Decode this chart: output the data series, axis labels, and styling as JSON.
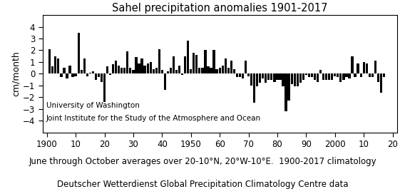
{
  "title": "Sahel precipitation anomalies 1901-2017",
  "ylabel": "cm/month",
  "ylim": [
    -5,
    5
  ],
  "yticks": [
    -4,
    -3,
    -2,
    -1,
    0,
    1,
    2,
    3,
    4
  ],
  "xticks": [
    1900,
    1910,
    1920,
    1930,
    1940,
    1950,
    1960,
    1970,
    1980,
    1990,
    2000,
    2010,
    2020
  ],
  "xlabels": [
    "1900",
    "10",
    "20",
    "30",
    "40",
    "1950",
    "60",
    "70",
    "80",
    "90",
    "2000",
    "10",
    "20"
  ],
  "annotation_line1": "University of Washington",
  "annotation_line2": "Joint Institute for the Study of the Atmosphere and Ocean",
  "caption_line1": "June through October averages over 20-10°N, 20°W-10°E.  1900-2017 climatology",
  "caption_line2": "Deutscher Wetterdienst Global Precipitation Climatology Centre data",
  "bar_color": "#000000",
  "bg_color": "#ffffff",
  "years": [
    1901,
    1902,
    1903,
    1904,
    1905,
    1906,
    1907,
    1908,
    1909,
    1910,
    1911,
    1912,
    1913,
    1914,
    1915,
    1916,
    1917,
    1918,
    1919,
    1920,
    1921,
    1922,
    1923,
    1924,
    1925,
    1926,
    1927,
    1928,
    1929,
    1930,
    1931,
    1932,
    1933,
    1934,
    1935,
    1936,
    1937,
    1938,
    1939,
    1940,
    1941,
    1942,
    1943,
    1944,
    1945,
    1946,
    1947,
    1948,
    1949,
    1950,
    1951,
    1952,
    1953,
    1954,
    1955,
    1956,
    1957,
    1958,
    1959,
    1960,
    1961,
    1962,
    1963,
    1964,
    1965,
    1966,
    1967,
    1968,
    1969,
    1970,
    1971,
    1972,
    1973,
    1974,
    1975,
    1976,
    1977,
    1978,
    1979,
    1980,
    1981,
    1982,
    1983,
    1984,
    1985,
    1986,
    1987,
    1988,
    1989,
    1990,
    1991,
    1992,
    1993,
    1994,
    1995,
    1996,
    1997,
    1998,
    1999,
    2000,
    2001,
    2002,
    2003,
    2004,
    2005,
    2006,
    2007,
    2008,
    2009,
    2010,
    2011,
    2012,
    2013,
    2014,
    2015,
    2016,
    2017
  ],
  "values": [
    2.1,
    0.6,
    1.5,
    1.3,
    -0.3,
    0.5,
    -0.4,
    0.7,
    -0.3,
    -0.2,
    3.5,
    0.3,
    1.3,
    -0.2,
    0.1,
    0.2,
    -0.5,
    -0.3,
    -0.7,
    -2.4,
    0.6,
    -0.1,
    0.8,
    1.1,
    0.7,
    0.5,
    0.5,
    1.9,
    0.5,
    0.3,
    1.4,
    0.9,
    1.3,
    0.7,
    0.9,
    1.0,
    0.4,
    0.5,
    2.1,
    0.3,
    -1.4,
    0.2,
    0.5,
    1.5,
    0.3,
    0.7,
    -0.1,
    1.5,
    2.8,
    0.4,
    1.8,
    1.6,
    0.5,
    0.5,
    2.0,
    0.6,
    0.5,
    2.0,
    0.4,
    0.5,
    0.7,
    1.3,
    0.5,
    1.1,
    0.4,
    -0.3,
    -0.3,
    -0.4,
    1.1,
    -0.2,
    -1.0,
    -2.5,
    -1.1,
    -0.8,
    -0.4,
    -0.8,
    -0.5,
    -0.5,
    -0.7,
    -0.5,
    -0.5,
    -1.1,
    -3.2,
    -2.3,
    -0.9,
    -1.1,
    -1.1,
    -0.8,
    -0.5,
    -0.1,
    -0.3,
    -0.3,
    -0.5,
    -0.7,
    0.3,
    -0.5,
    -0.5,
    -0.5,
    -0.5,
    -0.2,
    -0.3,
    -0.7,
    -0.5,
    -0.3,
    -0.4,
    1.5,
    -0.3,
    0.9,
    -0.3,
    1.0,
    0.9,
    -0.3,
    -0.3,
    1.1,
    -0.7,
    -1.6,
    -0.3
  ]
}
